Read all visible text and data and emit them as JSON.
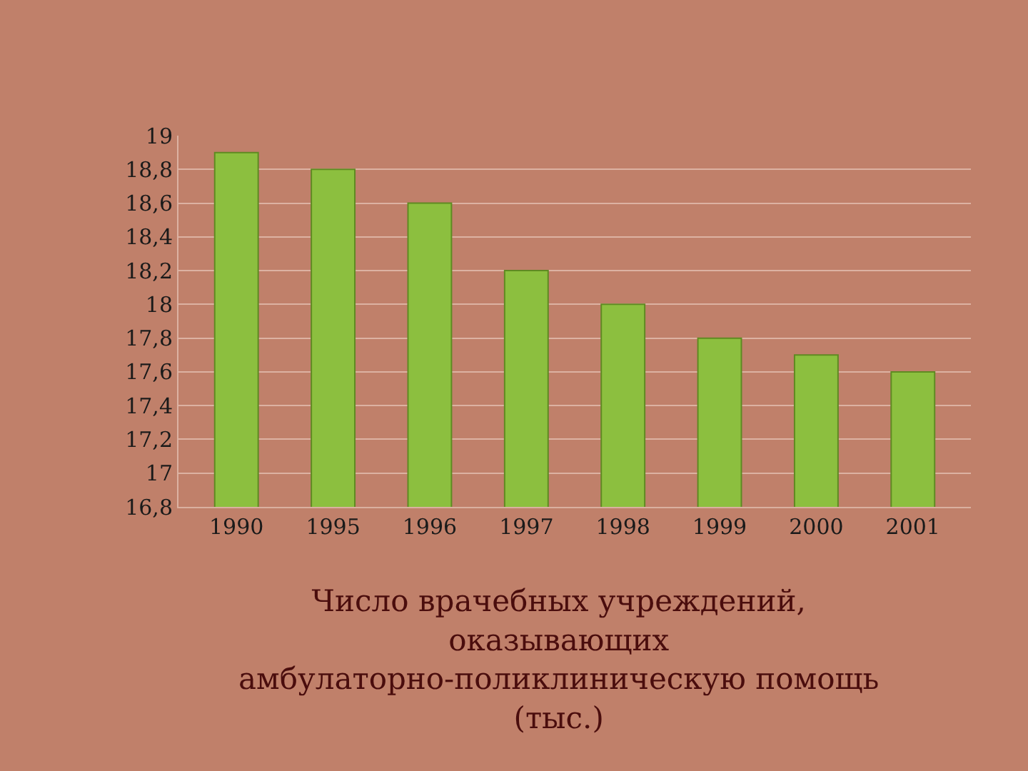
{
  "chart_data": {
    "type": "bar",
    "title": "Число врачебных учреждений, оказывающих амбулаторно-поликлиническую помощь (тыс.)",
    "categories": [
      "1990",
      "1995",
      "1996",
      "1997",
      "1998",
      "1999",
      "2000",
      "2001"
    ],
    "values": [
      18.9,
      18.8,
      18.6,
      18.2,
      18.0,
      17.8,
      17.7,
      17.6
    ],
    "color": "#8cbf3f",
    "ylim": [
      16.8,
      19
    ],
    "yticks": [
      {
        "value": 16.8,
        "label": "16,8"
      },
      17,
      {
        "value": 17.2,
        "label": "17,2"
      },
      {
        "value": 17.4,
        "label": "17,4"
      },
      {
        "value": 17.6,
        "label": "17,6"
      },
      {
        "value": 17.8,
        "label": "17,8"
      },
      18,
      {
        "value": 18.2,
        "label": "18,2"
      },
      {
        "value": 18.4,
        "label": "18,4"
      },
      {
        "value": 18.6,
        "label": "18,6"
      },
      {
        "value": 18.8,
        "label": "18,8"
      },
      19
    ],
    "grid": "y"
  }
}
